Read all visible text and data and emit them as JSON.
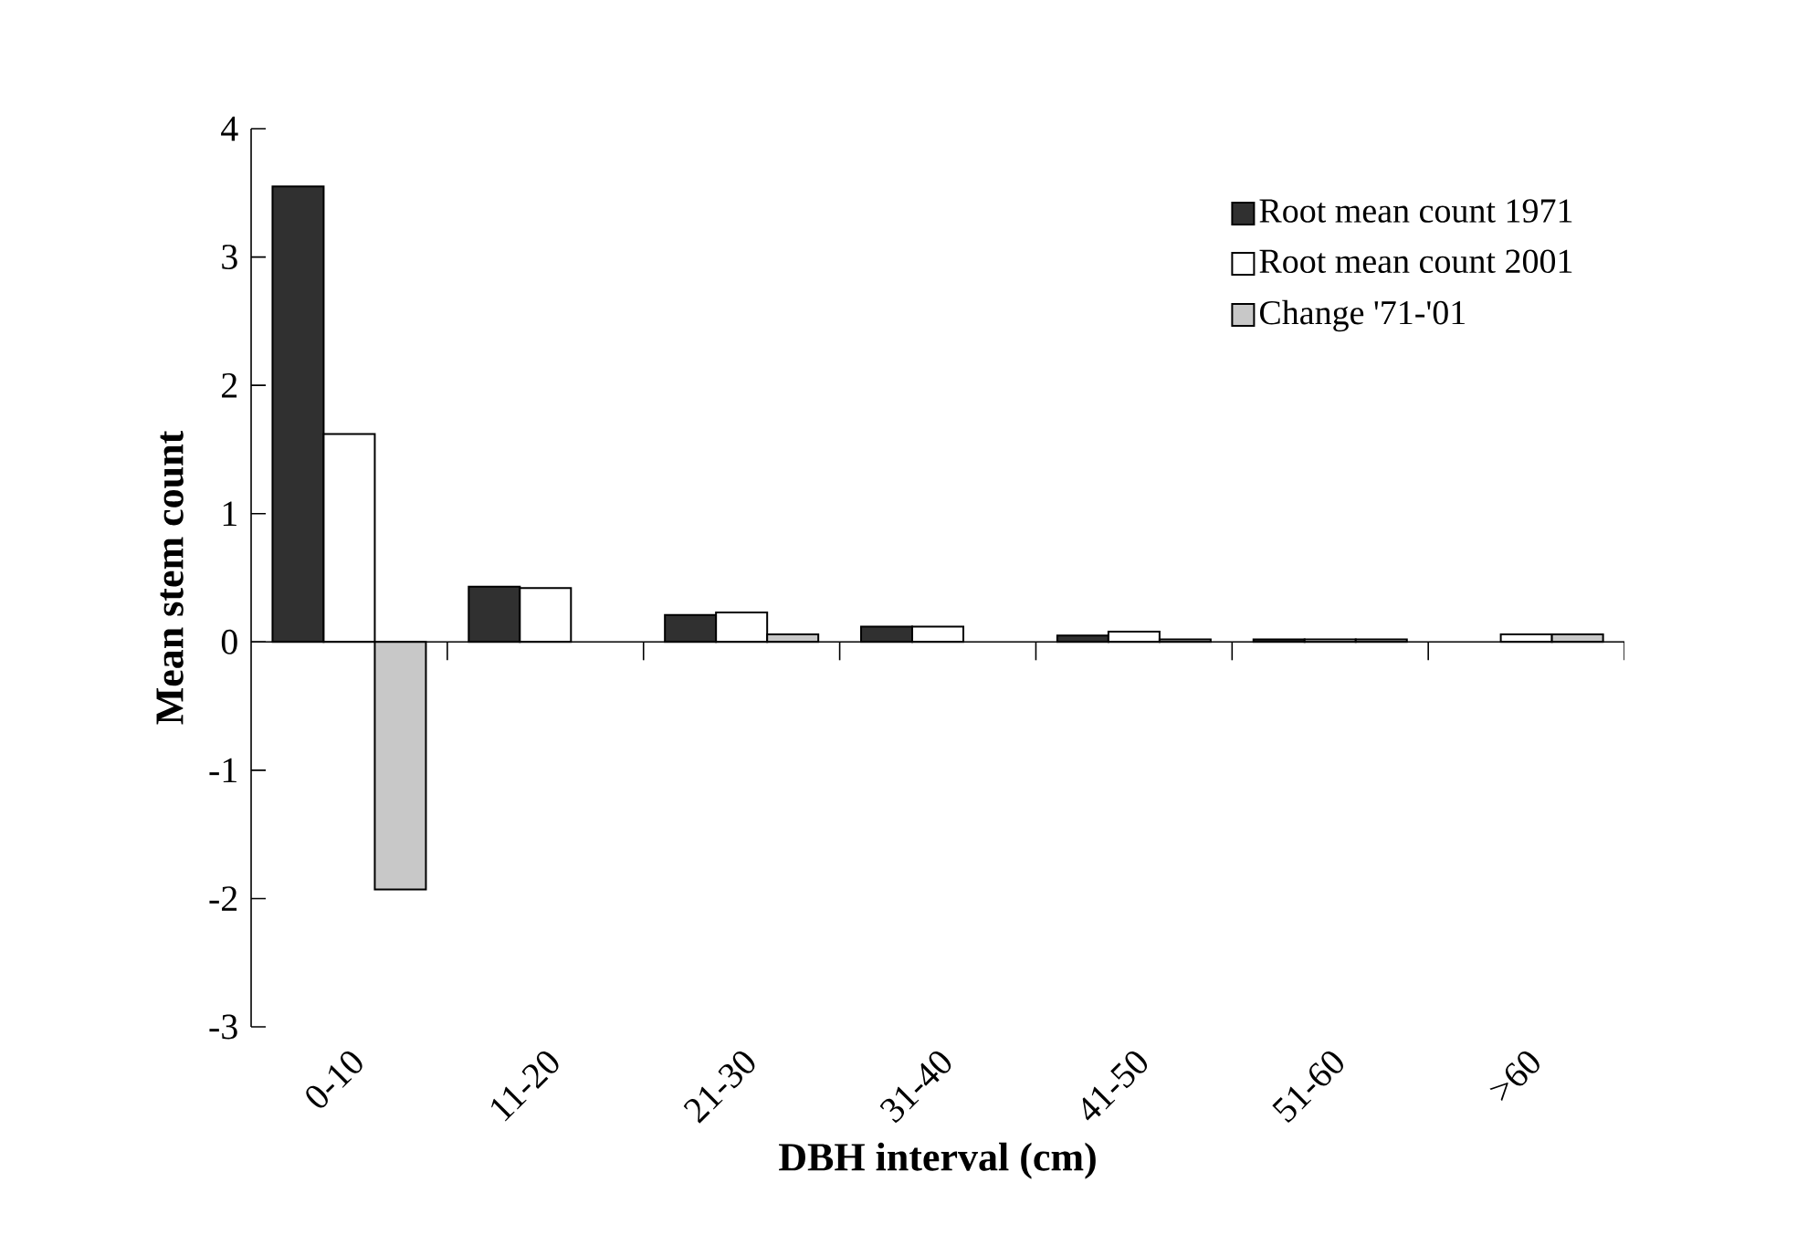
{
  "chart_data": {
    "type": "bar",
    "xlabel": "DBH interval (cm)",
    "ylabel": "Mean stem count",
    "categories": [
      "0-10",
      "11-20",
      "21-30",
      "31-40",
      "41-50",
      "51-60",
      ">60"
    ],
    "series": [
      {
        "name": "Root mean count 1971",
        "color": "#303030",
        "values": [
          3.55,
          0.43,
          0.21,
          0.12,
          0.05,
          0.02,
          null
        ]
      },
      {
        "name": "Root mean count 2001",
        "color": "#ffffff",
        "values": [
          1.62,
          0.42,
          0.23,
          0.12,
          0.08,
          0.02,
          0.06
        ]
      },
      {
        "name": "Change '71-'01",
        "color": "#c8c8c8",
        "values": [
          -1.93,
          null,
          0.06,
          null,
          0.02,
          0.02,
          0.06
        ]
      }
    ],
    "ylim": [
      -3,
      4
    ],
    "yticks": [
      -3,
      -2,
      -1,
      0,
      1,
      2,
      3,
      4
    ],
    "legend": "top right"
  }
}
